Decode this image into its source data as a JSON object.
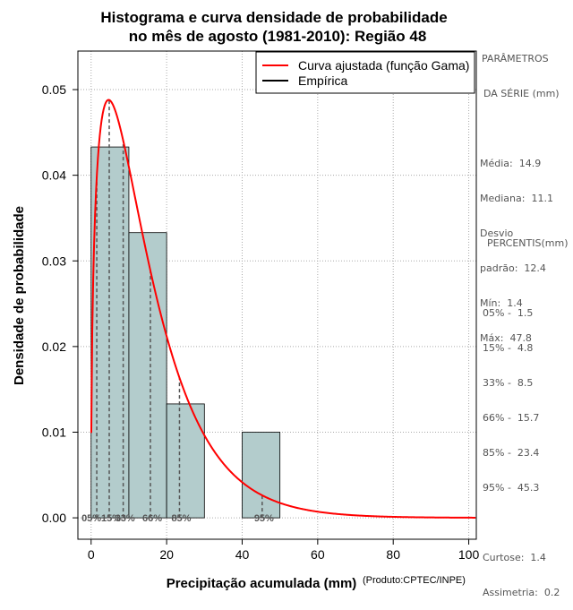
{
  "chart_data": {
    "type": "histogram",
    "title_line1": "Histograma e curva densidade de probabilidade",
    "title_line2": "no mês de agosto (1981-2010): Região 48",
    "xlabel": "Precipitação acumulada (mm)",
    "ylabel": "Densidade de probabilidade",
    "credit": "(Produto:CPTEC/INPE)",
    "xlim": [
      -3.5,
      102
    ],
    "ylim": [
      -0.0025,
      0.0545
    ],
    "xticks": [
      0,
      20,
      40,
      60,
      80,
      100
    ],
    "yticks": [
      0.0,
      0.01,
      0.02,
      0.03,
      0.04,
      0.05
    ],
    "ytick_labels": [
      "0.00",
      "0.01",
      "0.02",
      "0.03",
      "0.04",
      "0.05"
    ],
    "grid": true,
    "bins": [
      {
        "from": 0,
        "to": 10,
        "density": 0.0433
      },
      {
        "from": 10,
        "to": 20,
        "density": 0.0333
      },
      {
        "from": 20,
        "to": 30,
        "density": 0.0133
      },
      {
        "from": 30,
        "to": 40,
        "density": 0.0
      },
      {
        "from": 40,
        "to": 50,
        "density": 0.01
      }
    ],
    "gamma_fit": {
      "shape": 1.45,
      "scale": 10.3
    },
    "legend": {
      "position": "top-right",
      "entries": [
        {
          "label": "Curva ajustada (função Gama)",
          "color": "#ff0000"
        },
        {
          "label": "Empírica",
          "color": "#000000"
        }
      ]
    },
    "percentile_lines": [
      {
        "value": 1.5,
        "label": "05%"
      },
      {
        "value": 4.8,
        "label": "15%"
      },
      {
        "value": 8.5,
        "label": "33%"
      },
      {
        "value": 15.7,
        "label": "66%"
      },
      {
        "value": 23.4,
        "label": "85%"
      },
      {
        "value": 45.3,
        "label": "95%"
      }
    ],
    "percentile_label_text": [
      "05%",
      "15%",
      "33%",
      "66%",
      "85%",
      "95%"
    ]
  },
  "parameters_panel": {
    "heading1": "PARÂMETROS",
    "heading2": "DA SÉRIE (mm)",
    "lines": [
      "Média:  14.9",
      "Mediana:  11.1",
      "Desvio",
      "padrão:  12.4",
      "Mín:  1.4",
      "Máx:  47.8"
    ]
  },
  "percentiles_panel": {
    "heading": "PERCENTIS(mm)",
    "lines": [
      "05% -  1.5",
      "15% -  4.8",
      "33% -  8.5",
      "66% -  15.7",
      "85% -  23.4",
      "95% -  45.3"
    ],
    "extra_lines": [
      "Curtose:  1.4",
      "Assimetria:  0.2"
    ]
  },
  "colors": {
    "bar_fill": "#b3cccc",
    "curve": "#ff0000",
    "grid": "#aaaaaa",
    "percentile_line": "#555555",
    "panel_text": "#555555"
  }
}
